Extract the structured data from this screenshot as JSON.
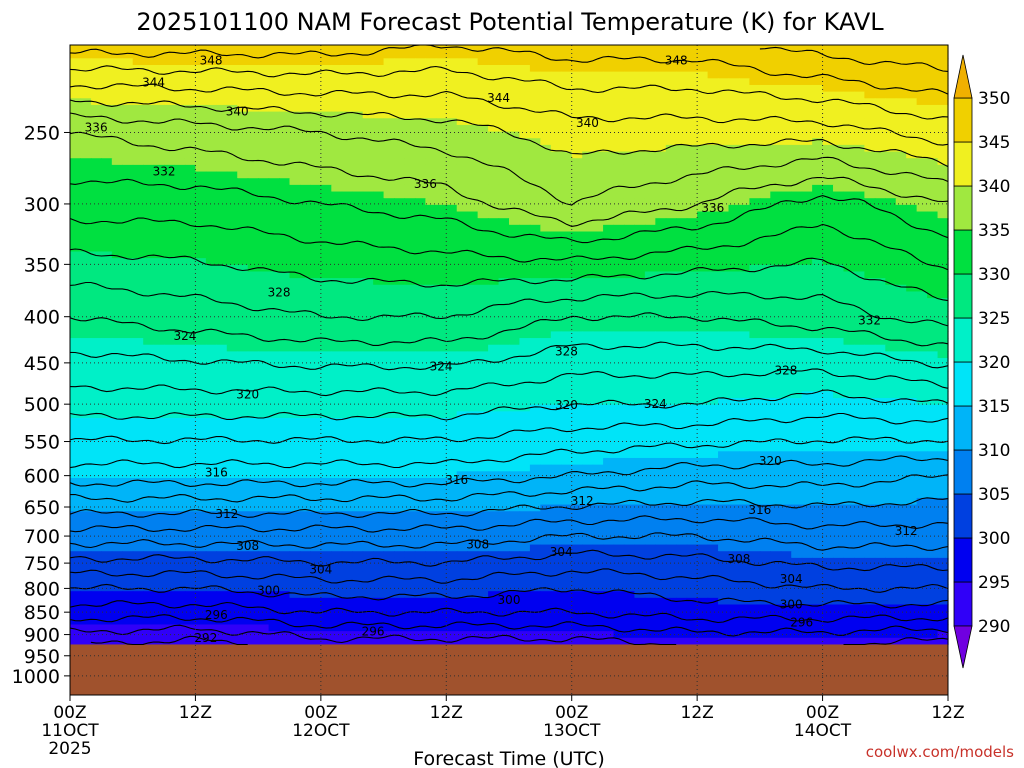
{
  "chart_data": {
    "type": "heatmap",
    "title": "2025101100 NAM Forecast Potential Temperature (K) for KAVL",
    "xlabel": "Forecast Time (UTC)",
    "ylabel": "",
    "x_ticks": [
      {
        "hours": 0,
        "line1": "00Z",
        "line2": "11OCT",
        "line3": "2025"
      },
      {
        "hours": 12,
        "line1": "12Z",
        "line2": "",
        "line3": ""
      },
      {
        "hours": 24,
        "line1": "00Z",
        "line2": "12OCT",
        "line3": ""
      },
      {
        "hours": 36,
        "line1": "12Z",
        "line2": "",
        "line3": ""
      },
      {
        "hours": 48,
        "line1": "00Z",
        "line2": "13OCT",
        "line3": ""
      },
      {
        "hours": 60,
        "line1": "12Z",
        "line2": "",
        "line3": ""
      },
      {
        "hours": 72,
        "line1": "00Z",
        "line2": "14OCT",
        "line3": ""
      },
      {
        "hours": 84,
        "line1": "12Z",
        "line2": "",
        "line3": ""
      }
    ],
    "xlim": [
      0,
      84
    ],
    "y_ticks": [
      250,
      300,
      350,
      400,
      450,
      500,
      550,
      600,
      650,
      700,
      750,
      800,
      850,
      900,
      950,
      1000
    ],
    "ylim": [
      1050,
      200
    ],
    "y_scale": "log-pressure",
    "surface_pressure": 923,
    "colorbar": {
      "levels": [
        290,
        295,
        300,
        305,
        310,
        315,
        320,
        325,
        330,
        335,
        340,
        345,
        350
      ],
      "colors": [
        "#7000e0",
        "#3000f8",
        "#0000f0",
        "#0040e0",
        "#0080f0",
        "#00b4f8",
        "#00e4f8",
        "#00f0c8",
        "#00e880",
        "#00e040",
        "#a0e840",
        "#f0f020",
        "#f0d000",
        "#f0b000"
      ]
    },
    "profiles": [
      {
        "hours": 0,
        "levels": [
          [
            925,
            292
          ],
          [
            850,
            297
          ],
          [
            800,
            300
          ],
          [
            700,
            307
          ],
          [
            600,
            315
          ],
          [
            500,
            321
          ],
          [
            400,
            326
          ],
          [
            300,
            333
          ],
          [
            250,
            336
          ],
          [
            200,
            347
          ]
        ]
      },
      {
        "hours": 12,
        "levels": [
          [
            925,
            291
          ],
          [
            850,
            297
          ],
          [
            800,
            300
          ],
          [
            700,
            307
          ],
          [
            600,
            315
          ],
          [
            500,
            321
          ],
          [
            400,
            327
          ],
          [
            300,
            333
          ],
          [
            250,
            337
          ],
          [
            200,
            347
          ]
        ]
      },
      {
        "hours": 24,
        "levels": [
          [
            925,
            293
          ],
          [
            850,
            298
          ],
          [
            800,
            301
          ],
          [
            700,
            307
          ],
          [
            600,
            315
          ],
          [
            500,
            321
          ],
          [
            400,
            328
          ],
          [
            300,
            334
          ],
          [
            250,
            338
          ],
          [
            200,
            347
          ]
        ]
      },
      {
        "hours": 36,
        "levels": [
          [
            925,
            293
          ],
          [
            850,
            298
          ],
          [
            800,
            301
          ],
          [
            700,
            307
          ],
          [
            600,
            315
          ],
          [
            500,
            321
          ],
          [
            400,
            328
          ],
          [
            300,
            335
          ],
          [
            250,
            339
          ],
          [
            200,
            346
          ]
        ]
      },
      {
        "hours": 48,
        "levels": [
          [
            925,
            293
          ],
          [
            850,
            298
          ],
          [
            800,
            300
          ],
          [
            700,
            306
          ],
          [
            600,
            314
          ],
          [
            500,
            320
          ],
          [
            400,
            326
          ],
          [
            300,
            338
          ],
          [
            250,
            341
          ],
          [
            200,
            347
          ]
        ]
      },
      {
        "hours": 60,
        "levels": [
          [
            925,
            294
          ],
          [
            850,
            299
          ],
          [
            800,
            301
          ],
          [
            700,
            306
          ],
          [
            600,
            313
          ],
          [
            500,
            320
          ],
          [
            400,
            326
          ],
          [
            300,
            336
          ],
          [
            250,
            341
          ],
          [
            200,
            347
          ]
        ]
      },
      {
        "hours": 72,
        "levels": [
          [
            925,
            294
          ],
          [
            850,
            299
          ],
          [
            800,
            302
          ],
          [
            700,
            307
          ],
          [
            600,
            313
          ],
          [
            500,
            319
          ],
          [
            400,
            327
          ],
          [
            300,
            333
          ],
          [
            250,
            341
          ],
          [
            200,
            349
          ]
        ]
      },
      {
        "hours": 84,
        "levels": [
          [
            925,
            293
          ],
          [
            850,
            299
          ],
          [
            800,
            302
          ],
          [
            700,
            307
          ],
          [
            600,
            312
          ],
          [
            500,
            320
          ],
          [
            400,
            329
          ],
          [
            300,
            336
          ],
          [
            250,
            343
          ],
          [
            200,
            350
          ]
        ]
      }
    ],
    "contour_labels": [
      {
        "text": "348",
        "hours": 13.5,
        "p": 208
      },
      {
        "text": "348",
        "hours": 58,
        "p": 208
      },
      {
        "text": "344",
        "hours": 8,
        "p": 220
      },
      {
        "text": "344",
        "hours": 41,
        "p": 229
      },
      {
        "text": "340",
        "hours": 16,
        "p": 237
      },
      {
        "text": "340",
        "hours": 49.5,
        "p": 244
      },
      {
        "text": "336",
        "hours": 2.5,
        "p": 247
      },
      {
        "text": "336",
        "hours": 34,
        "p": 285
      },
      {
        "text": "336",
        "hours": 61.5,
        "p": 303
      },
      {
        "text": "332",
        "hours": 9,
        "p": 276
      },
      {
        "text": "332",
        "hours": 76.5,
        "p": 404
      },
      {
        "text": "328",
        "hours": 20,
        "p": 376
      },
      {
        "text": "328",
        "hours": 47.5,
        "p": 437
      },
      {
        "text": "328",
        "hours": 68.5,
        "p": 459
      },
      {
        "text": "324",
        "hours": 11,
        "p": 420
      },
      {
        "text": "324",
        "hours": 35.5,
        "p": 454
      },
      {
        "text": "324",
        "hours": 56,
        "p": 500
      },
      {
        "text": "320",
        "hours": 17,
        "p": 488
      },
      {
        "text": "320",
        "hours": 47.5,
        "p": 501
      },
      {
        "text": "320",
        "hours": 67,
        "p": 578
      },
      {
        "text": "316",
        "hours": 14,
        "p": 595
      },
      {
        "text": "316",
        "hours": 37,
        "p": 607
      },
      {
        "text": "316",
        "hours": 66,
        "p": 655
      },
      {
        "text": "312",
        "hours": 15,
        "p": 662
      },
      {
        "text": "312",
        "hours": 49,
        "p": 640
      },
      {
        "text": "312",
        "hours": 80,
        "p": 691
      },
      {
        "text": "308",
        "hours": 17,
        "p": 718
      },
      {
        "text": "308",
        "hours": 39,
        "p": 715
      },
      {
        "text": "308",
        "hours": 64,
        "p": 742
      },
      {
        "text": "304",
        "hours": 24,
        "p": 762
      },
      {
        "text": "304",
        "hours": 47,
        "p": 729
      },
      {
        "text": "304",
        "hours": 69,
        "p": 781
      },
      {
        "text": "300",
        "hours": 19,
        "p": 804
      },
      {
        "text": "300",
        "hours": 42,
        "p": 824
      },
      {
        "text": "300",
        "hours": 69,
        "p": 834
      },
      {
        "text": "296",
        "hours": 14,
        "p": 856
      },
      {
        "text": "296",
        "hours": 29,
        "p": 893
      },
      {
        "text": "296",
        "hours": 70,
        "p": 873
      },
      {
        "text": "292",
        "hours": 13,
        "p": 908
      }
    ],
    "ground_color": "#a0522d",
    "grid": true,
    "credit": "coolwx.com/models"
  }
}
